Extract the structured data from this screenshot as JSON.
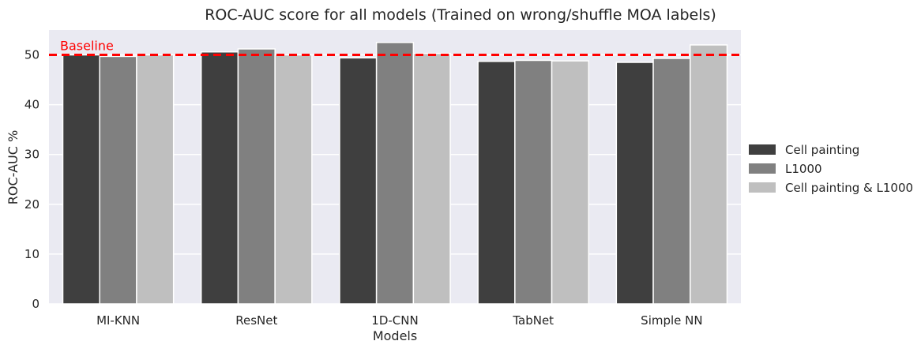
{
  "chart_data": {
    "type": "bar",
    "title": "ROC-AUC score for all models (Trained on wrong/shuffle MOA labels)",
    "xlabel": "Models",
    "ylabel": "ROC-AUC %",
    "categories": [
      "MI-KNN",
      "ResNet",
      "1D-CNN",
      "TabNet",
      "Simple NN"
    ],
    "series": [
      {
        "name": "Cell painting",
        "color": "#3f3f3f",
        "values": [
          50.0,
          50.6,
          49.4,
          48.7,
          48.5
        ]
      },
      {
        "name": "L1000",
        "color": "#808080",
        "values": [
          49.7,
          51.2,
          52.5,
          48.9,
          49.3
        ]
      },
      {
        "name": "Cell painting & L1000",
        "color": "#bfbfbf",
        "values": [
          50.0,
          50.0,
          50.3,
          48.8,
          52.0
        ]
      }
    ],
    "ylim": [
      0,
      55
    ],
    "yticks": [
      0,
      10,
      20,
      30,
      40,
      50
    ],
    "grid": true,
    "legend_position": "right",
    "baseline": {
      "label": "Baseline",
      "value": 50,
      "color": "#ff0000"
    },
    "background_color": "#eaeaf2"
  }
}
